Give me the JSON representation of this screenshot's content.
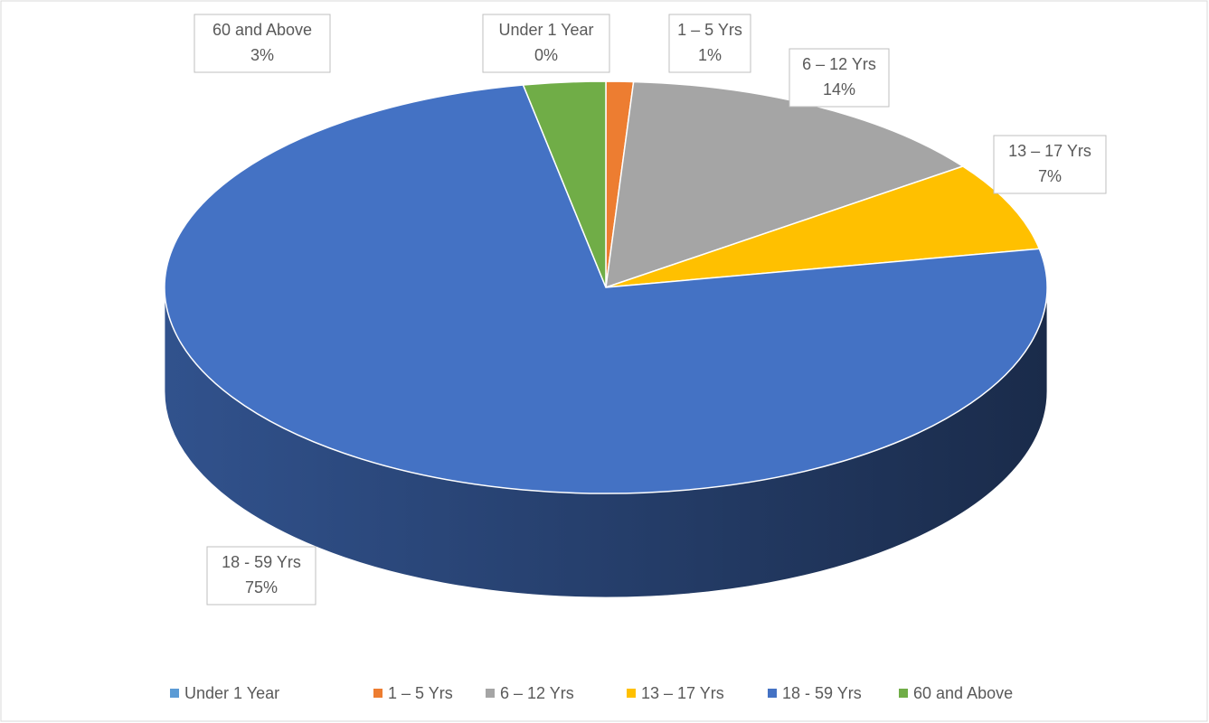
{
  "chart_data": {
    "type": "pie3d",
    "categories": [
      "Under 1 Year",
      "1 – 5 Yrs",
      "6 – 12 Yrs",
      "13 – 17 Yrs",
      "18 - 59 Yrs",
      "60 and Above"
    ],
    "values": [
      0,
      1,
      14,
      7,
      75,
      3
    ],
    "value_labels": [
      "0%",
      "1%",
      "14%",
      "7%",
      "75%",
      "3%"
    ],
    "colors": [
      "#5b9bd5",
      "#ed7d31",
      "#a5a5a5",
      "#ffc000",
      "#4472c4",
      "#70ad47"
    ],
    "legend": "bottom"
  }
}
